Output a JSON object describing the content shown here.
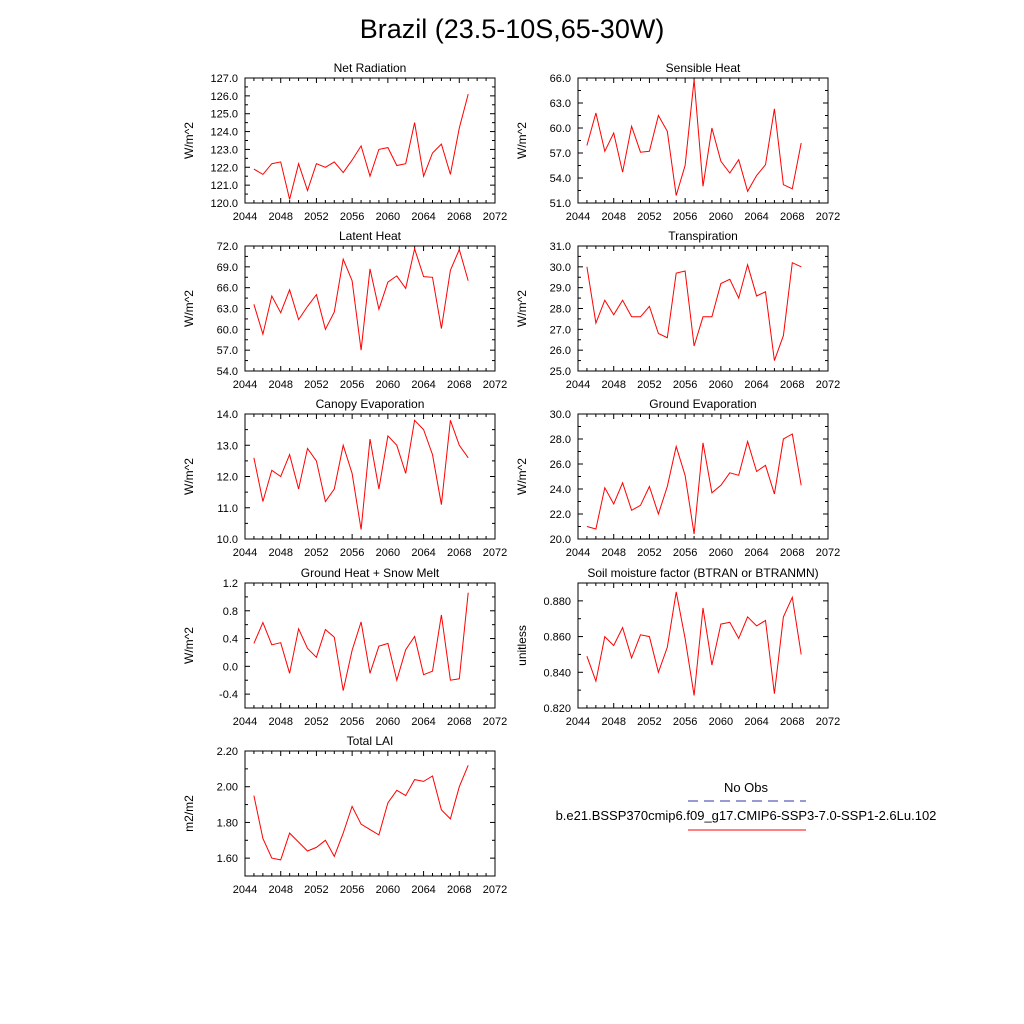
{
  "figure": {
    "title": "Brazil (23.5-10S,65-30W)"
  },
  "legend": {
    "obs_label": "No Obs",
    "model_label": "b.e21.BSSP370cmip6.f09_g17.CMIP6-SSP3-7.0-SSP1-2.6Lu.102",
    "obs_color": "#3333aa",
    "model_color": "#ff0000"
  },
  "chart_data": [
    {
      "type": "line",
      "title": "Net Radiation",
      "ylabel": "W/m^2",
      "xlim": [
        2044,
        2072
      ],
      "ylim": [
        120.0,
        127.0
      ],
      "x_ticks": [
        2044,
        2048,
        2052,
        2056,
        2060,
        2064,
        2068,
        2072
      ],
      "y_ticks": [
        "120.0",
        "121.0",
        "122.0",
        "123.0",
        "124.0",
        "125.0",
        "126.0",
        "127.0"
      ],
      "series": [
        {
          "color": "#ff0000",
          "x": [
            2045,
            2046,
            2047,
            2048,
            2049,
            2050,
            2051,
            2052,
            2053,
            2054,
            2055,
            2056,
            2057,
            2058,
            2059,
            2060,
            2061,
            2062,
            2063,
            2064,
            2065,
            2066,
            2067,
            2068,
            2069
          ],
          "values": [
            121.9,
            121.6,
            122.2,
            122.3,
            120.2,
            122.2,
            120.7,
            122.2,
            122.0,
            122.3,
            121.7,
            122.4,
            123.2,
            121.5,
            123.0,
            123.1,
            122.1,
            122.2,
            124.5,
            121.5,
            122.8,
            123.3,
            121.6,
            124.2,
            126.1
          ]
        }
      ]
    },
    {
      "type": "line",
      "title": "Sensible Heat",
      "ylabel": "W/m^2",
      "xlim": [
        2044,
        2072
      ],
      "ylim": [
        51.0,
        66.0
      ],
      "x_ticks": [
        2044,
        2048,
        2052,
        2056,
        2060,
        2064,
        2068,
        2072
      ],
      "y_ticks": [
        "51.0",
        "54.0",
        "57.0",
        "60.0",
        "63.0",
        "66.0"
      ],
      "series": [
        {
          "color": "#ff0000",
          "x": [
            2045,
            2046,
            2047,
            2048,
            2049,
            2050,
            2051,
            2052,
            2053,
            2054,
            2055,
            2056,
            2057,
            2058,
            2059,
            2060,
            2061,
            2062,
            2063,
            2064,
            2065,
            2066,
            2067,
            2068,
            2069
          ],
          "values": [
            57.9,
            61.8,
            57.2,
            59.4,
            54.7,
            60.2,
            57.1,
            57.2,
            61.5,
            59.6,
            51.9,
            55.5,
            65.8,
            53.0,
            60.0,
            56.0,
            54.6,
            56.2,
            52.4,
            54.3,
            55.6,
            62.3,
            53.2,
            52.7,
            58.2
          ]
        }
      ]
    },
    {
      "type": "line",
      "title": "Latent Heat",
      "ylabel": "W/m^2",
      "xlim": [
        2044,
        2072
      ],
      "ylim": [
        54.0,
        72.0
      ],
      "x_ticks": [
        2044,
        2048,
        2052,
        2056,
        2060,
        2064,
        2068,
        2072
      ],
      "y_ticks": [
        "54.0",
        "57.0",
        "60.0",
        "63.0",
        "66.0",
        "69.0",
        "72.0"
      ],
      "series": [
        {
          "color": "#ff0000",
          "x": [
            2045,
            2046,
            2047,
            2048,
            2049,
            2050,
            2051,
            2052,
            2053,
            2054,
            2055,
            2056,
            2057,
            2058,
            2059,
            2060,
            2061,
            2062,
            2063,
            2064,
            2065,
            2066,
            2067,
            2068,
            2069
          ],
          "values": [
            63.6,
            59.3,
            64.8,
            62.4,
            65.7,
            61.4,
            63.3,
            65.0,
            60.0,
            62.5,
            70.1,
            67.0,
            57.0,
            68.7,
            62.9,
            66.8,
            67.7,
            65.9,
            71.6,
            67.6,
            67.5,
            60.1,
            68.5,
            71.5,
            67.0
          ]
        }
      ]
    },
    {
      "type": "line",
      "title": "Transpiration",
      "ylabel": "W/m^2",
      "xlim": [
        2044,
        2072
      ],
      "ylim": [
        25.0,
        31.0
      ],
      "x_ticks": [
        2044,
        2048,
        2052,
        2056,
        2060,
        2064,
        2068,
        2072
      ],
      "y_ticks": [
        "25.0",
        "26.0",
        "27.0",
        "28.0",
        "29.0",
        "30.0",
        "31.0"
      ],
      "series": [
        {
          "color": "#ff0000",
          "x": [
            2045,
            2046,
            2047,
            2048,
            2049,
            2050,
            2051,
            2052,
            2053,
            2054,
            2055,
            2056,
            2057,
            2058,
            2059,
            2060,
            2061,
            2062,
            2063,
            2064,
            2065,
            2066,
            2067,
            2068,
            2069
          ],
          "values": [
            30.0,
            27.3,
            28.4,
            27.7,
            28.4,
            27.6,
            27.6,
            28.1,
            26.8,
            26.6,
            29.7,
            29.8,
            26.2,
            27.6,
            27.6,
            29.2,
            29.4,
            28.5,
            30.1,
            28.6,
            28.8,
            25.5,
            26.7,
            30.2,
            30.0
          ]
        }
      ]
    },
    {
      "type": "line",
      "title": "Canopy Evaporation",
      "ylabel": "W/m^2",
      "xlim": [
        2044,
        2072
      ],
      "ylim": [
        10.0,
        14.0
      ],
      "x_ticks": [
        2044,
        2048,
        2052,
        2056,
        2060,
        2064,
        2068,
        2072
      ],
      "y_ticks": [
        "10.0",
        "11.0",
        "12.0",
        "13.0",
        "14.0"
      ],
      "series": [
        {
          "color": "#ff0000",
          "x": [
            2045,
            2046,
            2047,
            2048,
            2049,
            2050,
            2051,
            2052,
            2053,
            2054,
            2055,
            2056,
            2057,
            2058,
            2059,
            2060,
            2061,
            2062,
            2063,
            2064,
            2065,
            2066,
            2067,
            2068,
            2069
          ],
          "values": [
            12.6,
            11.2,
            12.2,
            12.0,
            12.7,
            11.6,
            12.9,
            12.5,
            11.2,
            11.6,
            13.0,
            12.1,
            10.3,
            13.2,
            11.6,
            13.3,
            13.0,
            12.1,
            13.8,
            13.5,
            12.7,
            11.1,
            13.8,
            13.0,
            12.6
          ]
        }
      ]
    },
    {
      "type": "line",
      "title": "Ground Evaporation",
      "ylabel": "W/m^2",
      "xlim": [
        2044,
        2072
      ],
      "ylim": [
        20.0,
        30.0
      ],
      "x_ticks": [
        2044,
        2048,
        2052,
        2056,
        2060,
        2064,
        2068,
        2072
      ],
      "y_ticks": [
        "20.0",
        "22.0",
        "24.0",
        "26.0",
        "28.0",
        "30.0"
      ],
      "series": [
        {
          "color": "#ff0000",
          "x": [
            2045,
            2046,
            2047,
            2048,
            2049,
            2050,
            2051,
            2052,
            2053,
            2054,
            2055,
            2056,
            2057,
            2058,
            2059,
            2060,
            2061,
            2062,
            2063,
            2064,
            2065,
            2066,
            2067,
            2068,
            2069
          ],
          "values": [
            21.0,
            20.8,
            24.1,
            22.8,
            24.5,
            22.3,
            22.7,
            24.2,
            22.0,
            24.2,
            27.4,
            25.1,
            20.4,
            27.7,
            23.7,
            24.3,
            25.3,
            25.1,
            27.8,
            25.4,
            25.9,
            23.6,
            28.0,
            28.4,
            24.3
          ]
        }
      ]
    },
    {
      "type": "line",
      "title": "Ground Heat + Snow Melt",
      "ylabel": "W/m^2",
      "xlim": [
        2044,
        2072
      ],
      "ylim": [
        -0.6,
        1.2
      ],
      "x_ticks": [
        2044,
        2048,
        2052,
        2056,
        2060,
        2064,
        2068,
        2072
      ],
      "y_ticks": [
        "-0.4",
        "0.0",
        "0.4",
        "0.8",
        "1.2"
      ],
      "y_tick_values": [
        -0.4,
        0.0,
        0.4,
        0.8,
        1.2
      ],
      "series": [
        {
          "color": "#ff0000",
          "x": [
            2045,
            2046,
            2047,
            2048,
            2049,
            2050,
            2051,
            2052,
            2053,
            2054,
            2055,
            2056,
            2057,
            2058,
            2059,
            2060,
            2061,
            2062,
            2063,
            2064,
            2065,
            2066,
            2067,
            2068,
            2069
          ],
          "values": [
            0.33,
            0.63,
            0.31,
            0.34,
            -0.1,
            0.54,
            0.26,
            0.13,
            0.53,
            0.42,
            -0.35,
            0.23,
            0.64,
            -0.1,
            0.29,
            0.33,
            -0.2,
            0.24,
            0.43,
            -0.12,
            -0.07,
            0.74,
            -0.2,
            -0.18,
            1.06
          ]
        }
      ]
    },
    {
      "type": "line",
      "title": "Soil moisture factor (BTRAN or BTRANMN)",
      "ylabel": "unitless",
      "xlim": [
        2044,
        2072
      ],
      "ylim": [
        0.82,
        0.89
      ],
      "x_ticks": [
        2044,
        2048,
        2052,
        2056,
        2060,
        2064,
        2068,
        2072
      ],
      "y_ticks": [
        "0.820",
        "0.840",
        "0.860",
        "0.880"
      ],
      "y_tick_values": [
        0.82,
        0.84,
        0.86,
        0.88
      ],
      "series": [
        {
          "color": "#ff0000",
          "x": [
            2045,
            2046,
            2047,
            2048,
            2049,
            2050,
            2051,
            2052,
            2053,
            2054,
            2055,
            2056,
            2057,
            2058,
            2059,
            2060,
            2061,
            2062,
            2063,
            2064,
            2065,
            2066,
            2067,
            2068,
            2069
          ],
          "values": [
            0.849,
            0.835,
            0.86,
            0.855,
            0.865,
            0.848,
            0.861,
            0.86,
            0.84,
            0.854,
            0.885,
            0.859,
            0.827,
            0.876,
            0.844,
            0.867,
            0.868,
            0.859,
            0.871,
            0.866,
            0.869,
            0.828,
            0.871,
            0.882,
            0.85
          ]
        }
      ]
    },
    {
      "type": "line",
      "title": "Total LAI",
      "ylabel": "m2/m2",
      "xlim": [
        2044,
        2072
      ],
      "ylim": [
        1.5,
        2.2
      ],
      "x_ticks": [
        2044,
        2048,
        2052,
        2056,
        2060,
        2064,
        2068,
        2072
      ],
      "y_ticks": [
        "1.60",
        "1.80",
        "2.00",
        "2.20"
      ],
      "y_tick_values": [
        1.6,
        1.8,
        2.0,
        2.2
      ],
      "series": [
        {
          "color": "#ff0000",
          "x": [
            2045,
            2046,
            2047,
            2048,
            2049,
            2050,
            2051,
            2052,
            2053,
            2054,
            2055,
            2056,
            2057,
            2058,
            2059,
            2060,
            2061,
            2062,
            2063,
            2064,
            2065,
            2066,
            2067,
            2068,
            2069
          ],
          "values": [
            1.95,
            1.71,
            1.6,
            1.59,
            1.74,
            1.69,
            1.64,
            1.66,
            1.7,
            1.61,
            1.74,
            1.89,
            1.79,
            1.76,
            1.73,
            1.91,
            1.98,
            1.95,
            2.04,
            2.03,
            2.06,
            1.87,
            1.82,
            2.0,
            2.12
          ]
        }
      ]
    }
  ]
}
